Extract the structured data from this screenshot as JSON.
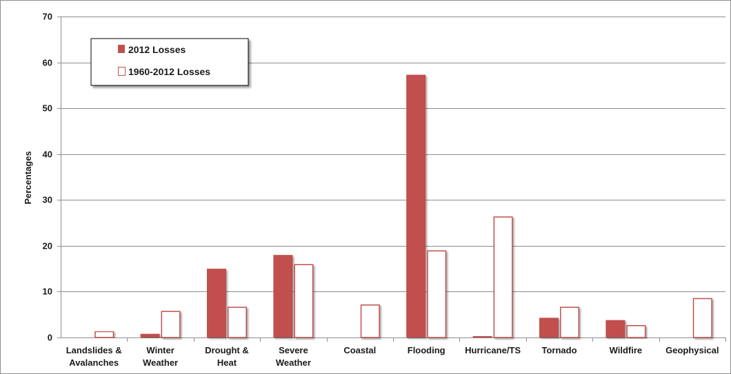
{
  "chart_data": {
    "type": "bar",
    "title": "",
    "xlabel": "",
    "ylabel": "Percentages",
    "ylim": [
      0,
      70
    ],
    "yticks": [
      0,
      10,
      20,
      30,
      40,
      50,
      60,
      70
    ],
    "grid": true,
    "legend_position": "top-left",
    "categories": [
      [
        "Landslides &",
        "Avalanches"
      ],
      [
        "Winter",
        "Weather"
      ],
      [
        "Drought &",
        "Heat"
      ],
      [
        "Severe",
        "Weather"
      ],
      [
        "Coastal"
      ],
      [
        "Flooding"
      ],
      [
        "Hurricane/TS"
      ],
      [
        "Tornado"
      ],
      [
        "Wildfire"
      ],
      [
        "Geophysical"
      ]
    ],
    "series": [
      {
        "name": "2012 Losses",
        "color": "#c0504d",
        "style": "filled",
        "values": [
          0,
          0.8,
          15,
          18,
          0,
          57.3,
          0.3,
          4.3,
          3.8,
          0
        ]
      },
      {
        "name": "1960-2012 Losses",
        "color": "#c0504d",
        "style": "outline",
        "values": [
          1.4,
          5.8,
          6.7,
          16,
          7.2,
          19,
          26.4,
          6.7,
          2.7,
          8.6
        ]
      }
    ]
  }
}
